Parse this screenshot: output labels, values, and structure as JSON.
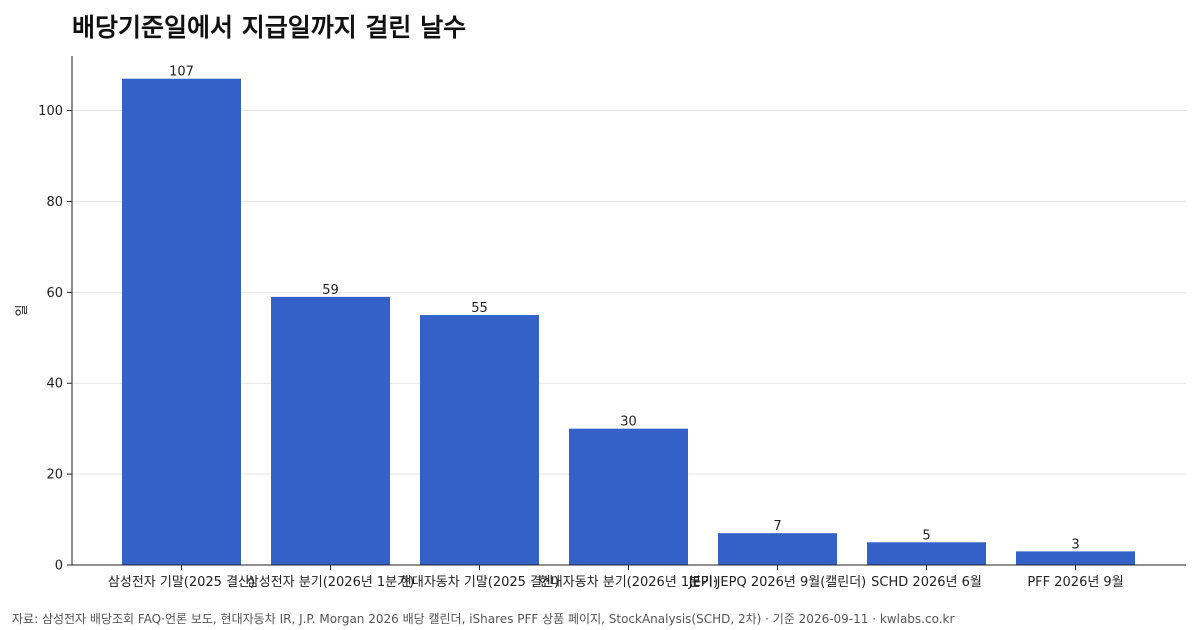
{
  "chart_data": {
    "type": "bar",
    "title": "배당기준일에서 지급일까지 걸린 날수",
    "xlabel": "",
    "ylabel": "일",
    "categories": [
      "삼성전자 기말(2025 결산)",
      "삼성전자 분기(2026년 1분기)",
      "현대자동차 기말(2025 결산)",
      "현대자동차 분기(2026년 1분기)",
      "JEPI·JEPQ 2026년 9월(캘린더)",
      "SCHD 2026년 6월",
      "PFF 2026년 9월"
    ],
    "values": [
      107,
      59,
      55,
      30,
      7,
      5,
      3
    ],
    "ylim": [
      0,
      112
    ],
    "yticks": [
      0,
      20,
      40,
      60,
      80,
      100
    ],
    "grid": "horizontal",
    "bar_color": "#3361c8",
    "source": "자료: 삼성전자 배당조회 FAQ·언론 보도, 현대자동차 IR, J.P. Morgan 2026 배당 캘린더, iShares PFF 상품 페이지, StockAnalysis(SCHD, 2차) · 기준 2026-09-11 · kwlabs.co.kr"
  }
}
